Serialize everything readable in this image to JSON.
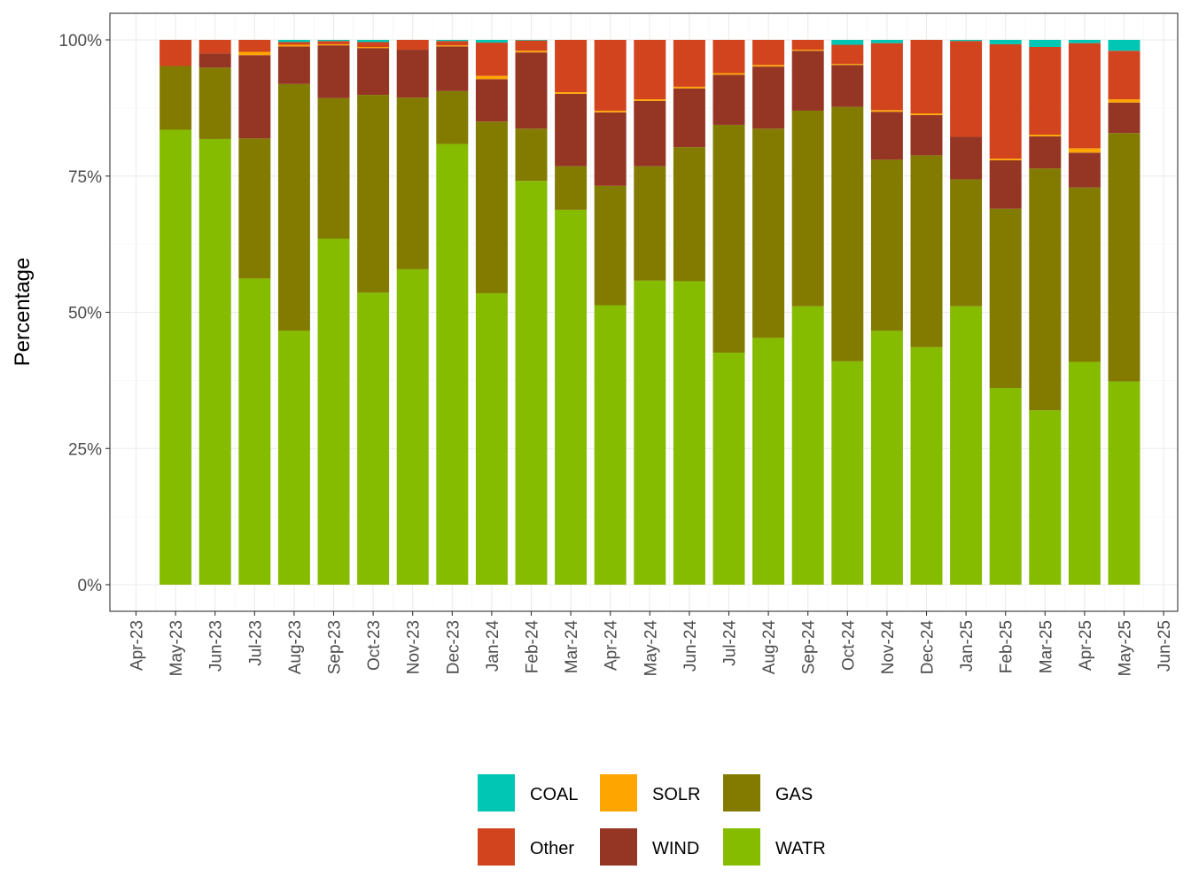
{
  "chart_data": {
    "type": "bar",
    "stacked": true,
    "percent": true,
    "xlabel": "",
    "ylabel": "Percentage",
    "ylim": [
      0,
      1
    ],
    "y_ticks": [
      "0%",
      "25%",
      "50%",
      "75%",
      "100%"
    ],
    "x_axis_ticks": [
      "Apr-23",
      "May-23",
      "Jun-23",
      "Jul-23",
      "Aug-23",
      "Sep-23",
      "Oct-23",
      "Nov-23",
      "Dec-23",
      "Jan-24",
      "Feb-24",
      "Mar-24",
      "Apr-24",
      "May-24",
      "Jun-24",
      "Jul-24",
      "Aug-24",
      "Sep-24",
      "Oct-24",
      "Nov-24",
      "Dec-24",
      "Jan-25",
      "Feb-25",
      "Mar-25",
      "Apr-25",
      "May-25",
      "Jun-25"
    ],
    "categories": [
      "May-23",
      "Jun-23",
      "Jul-23",
      "Aug-23",
      "Sep-23",
      "Oct-23",
      "Nov-23",
      "Dec-23",
      "Jan-24",
      "Feb-24",
      "Mar-24",
      "Apr-24",
      "May-24",
      "Jun-24",
      "Jul-24",
      "Aug-24",
      "Sep-24",
      "Oct-24",
      "Nov-24",
      "Dec-24",
      "Jan-25",
      "Feb-25",
      "Mar-25",
      "Apr-25",
      "May-25"
    ],
    "grid": true,
    "legend_position": "bottom",
    "series": [
      {
        "name": "WATR",
        "color": "#86BC00",
        "values": [
          0.835,
          0.818,
          0.562,
          0.466,
          0.635,
          0.536,
          0.579,
          0.809,
          0.535,
          0.741,
          0.688,
          0.513,
          0.558,
          0.557,
          0.426,
          0.453,
          0.511,
          0.41,
          0.466,
          0.436,
          0.511,
          0.361,
          0.32,
          0.409,
          0.373
        ]
      },
      {
        "name": "GAS",
        "color": "#827B00",
        "values": [
          0.117,
          0.131,
          0.257,
          0.453,
          0.258,
          0.363,
          0.315,
          0.097,
          0.315,
          0.096,
          0.08,
          0.219,
          0.21,
          0.246,
          0.418,
          0.384,
          0.359,
          0.467,
          0.314,
          0.352,
          0.233,
          0.329,
          0.444,
          0.32,
          0.456
        ]
      },
      {
        "name": "WIND",
        "color": "#953624",
        "values": [
          0.0,
          0.026,
          0.153,
          0.069,
          0.097,
          0.086,
          0.088,
          0.082,
          0.078,
          0.14,
          0.133,
          0.135,
          0.12,
          0.108,
          0.092,
          0.114,
          0.11,
          0.077,
          0.088,
          0.074,
          0.078,
          0.089,
          0.059,
          0.064,
          0.056
        ]
      },
      {
        "name": "SOLR",
        "color": "#FFA500",
        "values": [
          0.0,
          0.0,
          0.006,
          0.003,
          0.002,
          0.002,
          0.0,
          0.002,
          0.006,
          0.003,
          0.003,
          0.003,
          0.003,
          0.003,
          0.003,
          0.003,
          0.002,
          0.002,
          0.003,
          0.003,
          0.0,
          0.003,
          0.003,
          0.008,
          0.006
        ]
      },
      {
        "name": "Other",
        "color": "#D1441E",
        "values": [
          0.048,
          0.025,
          0.022,
          0.005,
          0.006,
          0.009,
          0.018,
          0.008,
          0.061,
          0.019,
          0.096,
          0.13,
          0.109,
          0.086,
          0.061,
          0.046,
          0.018,
          0.035,
          0.123,
          0.135,
          0.176,
          0.21,
          0.161,
          0.193,
          0.089
        ]
      },
      {
        "name": "COAL",
        "color": "#00C6B3",
        "values": [
          0.0,
          0.0,
          0.0,
          0.004,
          0.002,
          0.004,
          0.0,
          0.002,
          0.005,
          0.001,
          0.0,
          0.0,
          0.0,
          0.0,
          0.0,
          0.0,
          0.0,
          0.009,
          0.006,
          0.0,
          0.002,
          0.008,
          0.013,
          0.006,
          0.02
        ]
      }
    ],
    "legend_order": [
      "COAL",
      "SOLR",
      "GAS",
      "Other",
      "WIND",
      "WATR"
    ]
  }
}
